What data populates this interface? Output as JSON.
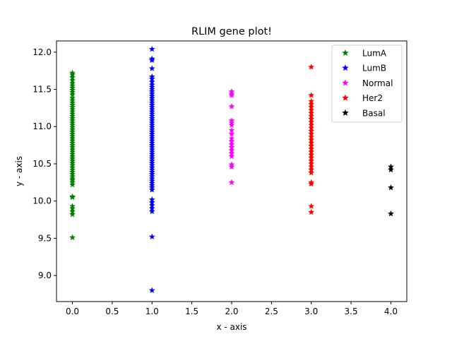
{
  "chart_data": {
    "type": "scatter",
    "title": "RLIM gene plot!",
    "xlabel": "x - axis",
    "ylabel": "y - axis",
    "xlim": [
      -0.2,
      4.2
    ],
    "ylim": [
      8.65,
      12.15
    ],
    "xticks": [
      "0.0",
      "0.5",
      "1.0",
      "1.5",
      "2.0",
      "2.5",
      "3.0",
      "3.5",
      "4.0"
    ],
    "yticks": [
      "9.0",
      "9.5",
      "10.0",
      "10.5",
      "11.0",
      "11.5",
      "12.0"
    ],
    "grid": false,
    "legend": "top-right",
    "marker": "star",
    "series": [
      {
        "name": "LumA",
        "color": "#008000",
        "x": 0,
        "y": [
          9.51,
          9.82,
          9.86,
          9.9,
          9.93,
          10.05,
          10.06,
          10.22,
          10.25,
          10.28,
          10.3,
          10.33,
          10.36,
          10.39,
          10.42,
          10.45,
          10.48,
          10.51,
          10.54,
          10.57,
          10.6,
          10.63,
          10.66,
          10.69,
          10.72,
          10.75,
          10.78,
          10.81,
          10.84,
          10.87,
          10.9,
          10.93,
          10.96,
          10.99,
          11.02,
          11.05,
          11.08,
          11.11,
          11.14,
          11.17,
          11.2,
          11.23,
          11.26,
          11.29,
          11.32,
          11.35,
          11.38,
          11.43,
          11.46,
          11.49,
          11.52,
          11.55,
          11.58,
          11.62,
          11.66,
          11.7,
          11.72
        ]
      },
      {
        "name": "LumB",
        "color": "#0000ff",
        "x": 1,
        "y": [
          8.8,
          9.52,
          9.86,
          9.9,
          9.94,
          9.98,
          10.02,
          10.15,
          10.18,
          10.21,
          10.24,
          10.27,
          10.3,
          10.33,
          10.36,
          10.39,
          10.42,
          10.45,
          10.48,
          10.51,
          10.54,
          10.57,
          10.6,
          10.63,
          10.66,
          10.69,
          10.72,
          10.75,
          10.78,
          10.81,
          10.84,
          10.87,
          10.9,
          10.93,
          10.96,
          10.99,
          11.02,
          11.05,
          11.08,
          11.11,
          11.14,
          11.17,
          11.2,
          11.23,
          11.26,
          11.29,
          11.32,
          11.35,
          11.38,
          11.41,
          11.44,
          11.47,
          11.5,
          11.53,
          11.56,
          11.6,
          11.64,
          11.67,
          11.78,
          11.89,
          11.91,
          12.04
        ]
      },
      {
        "name": "Normal",
        "color": "#ff00ff",
        "x": 2,
        "y": [
          10.25,
          10.46,
          10.49,
          10.6,
          10.64,
          10.68,
          10.72,
          10.76,
          10.8,
          10.84,
          10.9,
          10.95,
          11.02,
          11.05,
          11.08,
          11.27,
          11.42,
          11.44,
          11.47
        ]
      },
      {
        "name": "Her2",
        "color": "#ff0000",
        "x": 3,
        "y": [
          9.85,
          9.93,
          10.23,
          10.25,
          10.38,
          10.42,
          10.46,
          10.5,
          10.54,
          10.58,
          10.62,
          10.66,
          10.7,
          10.74,
          10.78,
          10.82,
          10.86,
          10.9,
          10.94,
          10.98,
          11.02,
          11.06,
          11.1,
          11.14,
          11.18,
          11.22,
          11.26,
          11.3,
          11.34,
          11.42,
          11.8
        ]
      },
      {
        "name": "Basal",
        "color": "#000000",
        "x": 4,
        "y": [
          9.83,
          10.18,
          10.42,
          10.46
        ]
      }
    ]
  }
}
